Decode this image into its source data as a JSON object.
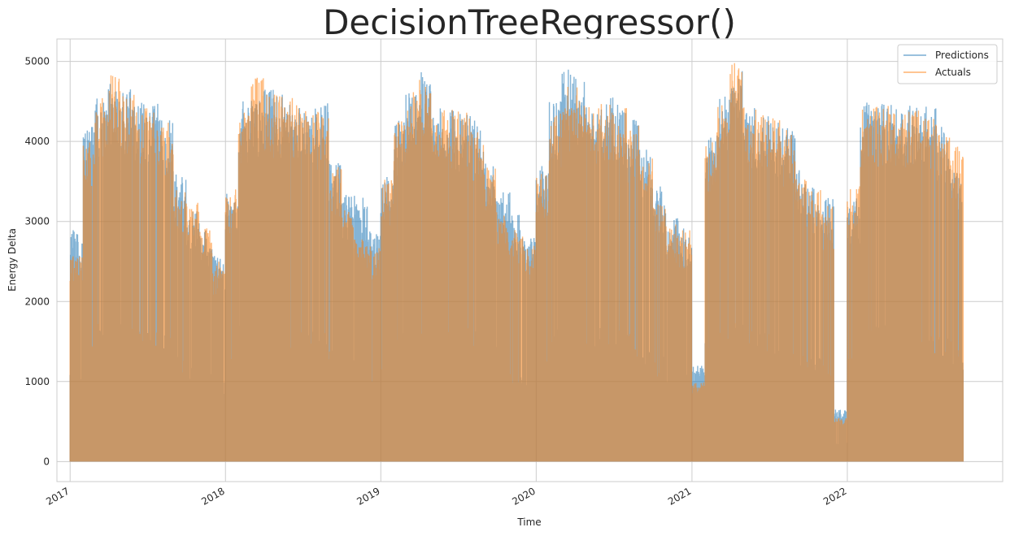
{
  "chart_data": {
    "type": "area",
    "title": "DecisionTreeRegressor()",
    "xlabel": "Time",
    "ylabel": "Energy Delta",
    "x_ticks": [
      "2017",
      "2018",
      "2019",
      "2020",
      "2021",
      "2022"
    ],
    "y_ticks": [
      0,
      1000,
      2000,
      3000,
      4000,
      5000
    ],
    "xlim": [
      "2016-12-01",
      "2023-01-01"
    ],
    "ylim": [
      -250,
      5280
    ],
    "grid": true,
    "legend_position": "top-right",
    "colors": {
      "Predictions": "#1f77b4",
      "Actuals": "#ff7f0e",
      "overlap": "#c49a6c"
    },
    "x": [
      "2017-01",
      "2017-02",
      "2017-03",
      "2017-04",
      "2017-05",
      "2017-06",
      "2017-07",
      "2017-08",
      "2017-09",
      "2017-10",
      "2017-11",
      "2017-12",
      "2018-01",
      "2018-02",
      "2018-03",
      "2018-04",
      "2018-05",
      "2018-06",
      "2018-07",
      "2018-08",
      "2018-09",
      "2018-10",
      "2018-11",
      "2018-12",
      "2019-01",
      "2019-02",
      "2019-03",
      "2019-04",
      "2019-05",
      "2019-06",
      "2019-07",
      "2019-08",
      "2019-09",
      "2019-10",
      "2019-11",
      "2019-12",
      "2020-01",
      "2020-02",
      "2020-03",
      "2020-04",
      "2020-05",
      "2020-06",
      "2020-07",
      "2020-08",
      "2020-09",
      "2020-10",
      "2020-11",
      "2020-12",
      "2021-01",
      "2021-02",
      "2021-03",
      "2021-04",
      "2021-05",
      "2021-06",
      "2021-07",
      "2021-08",
      "2021-09",
      "2021-10",
      "2021-11",
      "2021-12",
      "2022-01",
      "2022-02",
      "2022-03",
      "2022-04",
      "2022-05",
      "2022-06",
      "2022-07",
      "2022-08",
      "2022-09"
    ],
    "series": [
      {
        "name": "Predictions",
        "values": [
          2900,
          4200,
          4550,
          4780,
          4650,
          4500,
          4480,
          4300,
          3600,
          3200,
          2900,
          2600,
          3350,
          4500,
          4600,
          4650,
          4600,
          4500,
          4450,
          4500,
          3800,
          3350,
          3300,
          2900,
          3600,
          4300,
          4600,
          4900,
          4450,
          4400,
          4350,
          4300,
          3800,
          3400,
          3100,
          2800,
          3700,
          4500,
          4900,
          4800,
          4600,
          4550,
          4500,
          4350,
          3900,
          3450,
          3050,
          2950,
          1200,
          4100,
          4600,
          4900,
          4450,
          4350,
          4300,
          4200,
          3700,
          3450,
          3300,
          650,
          3300,
          4500,
          4550,
          4500,
          4450,
          4450,
          4450,
          4200,
          3650
        ]
      },
      {
        "name": "Actuals",
        "values": [
          2600,
          4000,
          4600,
          4850,
          4600,
          4450,
          4400,
          4250,
          3450,
          3250,
          2950,
          2500,
          3400,
          4450,
          4800,
          4600,
          4600,
          4550,
          4400,
          4400,
          3700,
          3200,
          2800,
          2700,
          3550,
          4250,
          4650,
          4850,
          4400,
          4400,
          4400,
          4200,
          3700,
          3100,
          2900,
          2700,
          3600,
          4350,
          4700,
          4700,
          4500,
          4500,
          4500,
          4200,
          3800,
          3400,
          3000,
          2900,
          1000,
          4050,
          4500,
          5020,
          4450,
          4400,
          4300,
          4150,
          3550,
          3400,
          3200,
          550,
          3450,
          4450,
          4450,
          4450,
          4400,
          4400,
          4300,
          4100,
          3950
        ]
      }
    ]
  }
}
